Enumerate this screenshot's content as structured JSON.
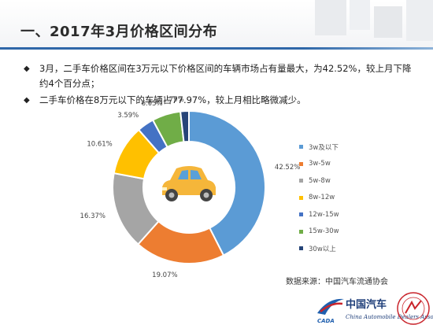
{
  "title": "一、2017年3月价格区间分布",
  "bullets": [
    "3月，二手车价格区间在3万元以下价格区间的车辆市场占有量最大，为42.52%，较上月下降约4个百分点；",
    "二手车价格在8万元以下的车辆占77.97%，较上月相比略微减少。"
  ],
  "source": "数据来源：中国汽车流通协会",
  "logo": {
    "name_cn": "中国汽车",
    "abbr": "CADA",
    "name_en": "China Automobile Dealers Association",
    "seal_text": "中国汽车流通协会"
  },
  "colors": {
    "title_rule": "#2e67a8"
  },
  "chart_data": {
    "type": "pie",
    "variant": "donut",
    "title": "",
    "legend_position": "right",
    "center_icon": "car-icon",
    "slices": [
      {
        "label": "3w及以下",
        "value": 42.52,
        "value_label": "42.52%",
        "color": "#5b9bd5"
      },
      {
        "label": "3w-5w",
        "value": 19.07,
        "value_label": "19.07%",
        "color": "#ed7d31"
      },
      {
        "label": "5w-8w",
        "value": 16.37,
        "value_label": "16.37%",
        "color": "#a5a5a5"
      },
      {
        "label": "8w-12w",
        "value": 10.61,
        "value_label": "10.61%",
        "color": "#ffc000"
      },
      {
        "label": "12w-15w",
        "value": 3.59,
        "value_label": "3.59%",
        "color": "#4472c4"
      },
      {
        "label": "15w-30w",
        "value": 6.05,
        "value_label": "6.05%",
        "color": "#70ad47"
      },
      {
        "label": "30w以上",
        "value": 1.79,
        "value_label": "1.79%",
        "color": "#264478"
      }
    ]
  }
}
